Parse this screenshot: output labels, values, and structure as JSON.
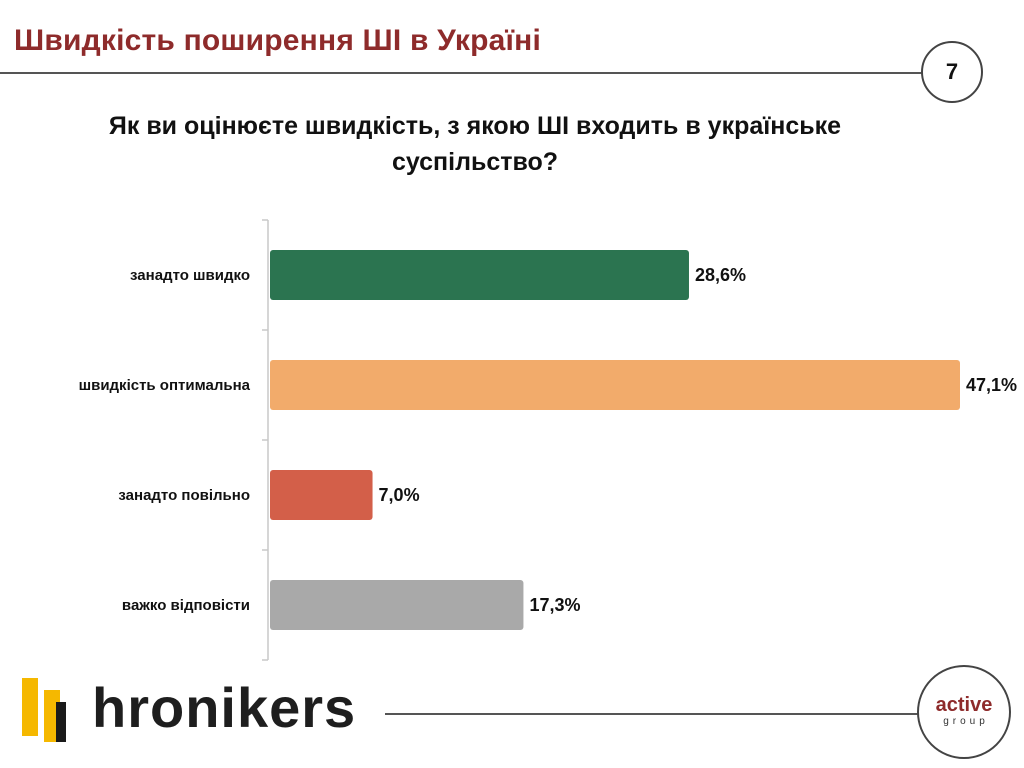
{
  "header": {
    "title": "Швидкість поширення ШІ в Україні",
    "page_number": "7"
  },
  "chart_data": {
    "type": "bar",
    "orientation": "horizontal",
    "title": "Як ви оцінюєте швидкість, з якою ШІ входить в українське суспільство?",
    "categories": [
      "занадто швидко",
      "швидкість оптимальна",
      "занадто повільно",
      "важко відповісти"
    ],
    "values": [
      28.6,
      47.1,
      7.0,
      17.3
    ],
    "value_labels": [
      "28,6%",
      "47,1%",
      "7,0%",
      "17,3%"
    ],
    "colors": [
      "#2b7450",
      "#f2ab6b",
      "#d35f49",
      "#a9a9a9"
    ],
    "xlim": [
      0,
      47.1
    ],
    "grid": false,
    "legend": "none"
  },
  "footer": {
    "logo_text": "hronikers",
    "partner_main": "active",
    "partner_sub": "group"
  }
}
